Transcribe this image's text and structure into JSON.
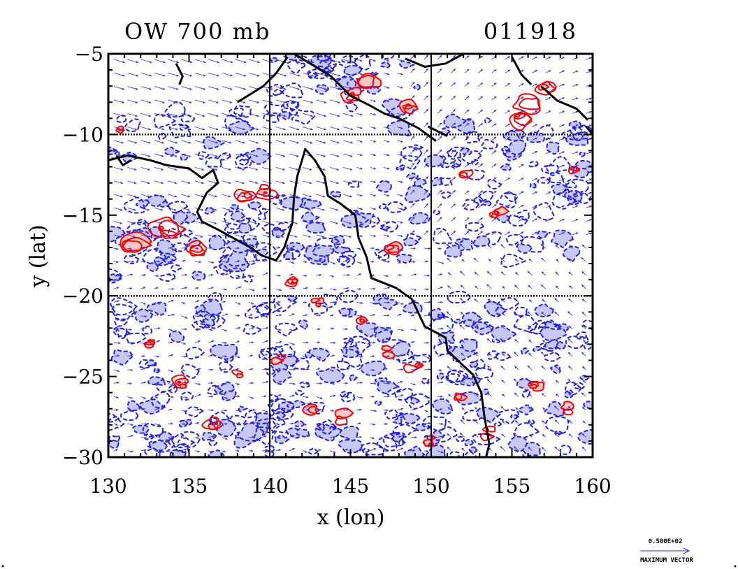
{
  "title_left": "OW 700 mb",
  "title_right": "011918",
  "x_axis": {
    "label": "x (lon)",
    "range": [
      130,
      160
    ],
    "ticks": [
      130,
      135,
      140,
      145,
      150,
      155,
      160
    ],
    "tick_labels": [
      "130",
      "135",
      "140",
      "145",
      "150",
      "155",
      "160"
    ]
  },
  "y_axis": {
    "label": "y (lat)",
    "range": [
      -30,
      -5
    ],
    "ticks": [
      -5,
      -10,
      -15,
      -20,
      -25,
      -30
    ],
    "tick_labels": [
      "−5",
      "−10",
      "−15",
      "−20",
      "−25",
      "−30"
    ]
  },
  "gridlines": {
    "lon": [
      140,
      150
    ],
    "lat": [
      -10,
      -20
    ]
  },
  "legend": {
    "vector_value": "0.500E+02",
    "vector_label": "MAXIMUM VECTOR"
  },
  "colors": {
    "positive": "#ff0000",
    "positive_fill": "#f5c8c8",
    "negative": "#1f1fe6",
    "negative_fill": "#c8c8f2",
    "coast": "#000000",
    "vectors": "#2a2ae0"
  },
  "coastline": [
    [
      [
        130.0,
        -11.6
      ],
      [
        131.2,
        -11.3
      ],
      [
        132.6,
        -11.6
      ],
      [
        133.6,
        -11.9
      ],
      [
        135.0,
        -12.1
      ],
      [
        135.8,
        -12.7
      ],
      [
        136.5,
        -12.2
      ],
      [
        136.8,
        -13.0
      ],
      [
        136.1,
        -13.6
      ],
      [
        135.5,
        -14.8
      ],
      [
        135.8,
        -15.4
      ],
      [
        136.8,
        -15.9
      ],
      [
        137.7,
        -16.4
      ],
      [
        138.8,
        -17.0
      ],
      [
        139.5,
        -17.5
      ],
      [
        140.4,
        -17.8
      ],
      [
        140.9,
        -17.0
      ],
      [
        141.4,
        -15.5
      ],
      [
        141.5,
        -13.9
      ],
      [
        141.7,
        -12.6
      ],
      [
        142.2,
        -10.9
      ],
      [
        142.8,
        -11.6
      ],
      [
        143.4,
        -12.6
      ],
      [
        143.6,
        -13.8
      ],
      [
        144.4,
        -14.3
      ],
      [
        145.3,
        -15.0
      ],
      [
        145.5,
        -16.4
      ],
      [
        146.0,
        -17.6
      ],
      [
        146.3,
        -18.9
      ],
      [
        147.8,
        -19.5
      ],
      [
        148.8,
        -20.2
      ],
      [
        149.6,
        -21.9
      ],
      [
        150.9,
        -22.6
      ],
      [
        151.0,
        -23.4
      ],
      [
        152.6,
        -24.9
      ],
      [
        153.1,
        -26.0
      ],
      [
        153.3,
        -27.5
      ],
      [
        153.6,
        -29.2
      ],
      [
        153.4,
        -30.0
      ]
    ],
    [
      [
        138.0,
        -8.0
      ],
      [
        139.6,
        -7.0
      ],
      [
        140.4,
        -6.2
      ],
      [
        141.1,
        -5.2
      ]
    ],
    [
      [
        141.5,
        -5.0
      ],
      [
        142.5,
        -5.6
      ],
      [
        143.8,
        -6.4
      ],
      [
        145.0,
        -7.6
      ],
      [
        146.2,
        -8.2
      ],
      [
        147.1,
        -8.7
      ],
      [
        148.0,
        -9.0
      ],
      [
        149.2,
        -9.6
      ],
      [
        150.3,
        -10.4
      ]
    ],
    [
      [
        151.0,
        -10.1
      ],
      [
        149.8,
        -9.5
      ]
    ],
    [
      [
        148.4,
        -5.3
      ],
      [
        149.6,
        -5.8
      ],
      [
        150.9,
        -5.6
      ],
      [
        152.0,
        -5.0
      ]
    ],
    [
      [
        155.0,
        -5.2
      ],
      [
        155.6,
        -6.3
      ],
      [
        156.2,
        -6.9
      ]
    ],
    [
      [
        156.8,
        -7.0
      ],
      [
        157.8,
        -7.9
      ],
      [
        159.0,
        -8.4
      ],
      [
        159.7,
        -9.1
      ]
    ],
    [
      [
        159.6,
        -9.5
      ],
      [
        160.0,
        -10.0
      ]
    ],
    [
      [
        134.2,
        -5.6
      ],
      [
        134.6,
        -6.4
      ],
      [
        134.4,
        -6.9
      ]
    ],
    [
      [
        130.5,
        -11.3
      ],
      [
        130.9,
        -11.9
      ],
      [
        131.4,
        -11.6
      ]
    ]
  ]
}
